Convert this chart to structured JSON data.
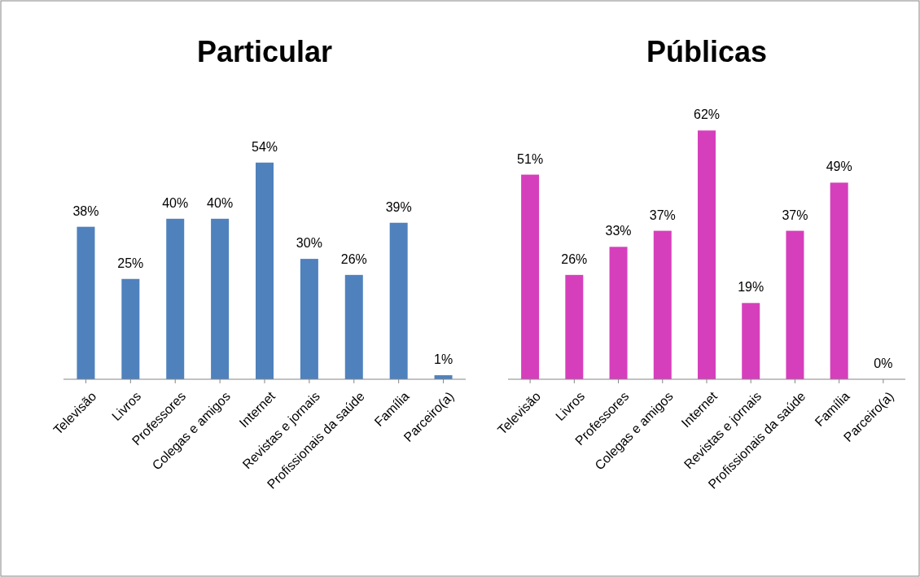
{
  "chart_data": [
    {
      "type": "bar",
      "title": "Particular",
      "categories": [
        "Televisão",
        "Livros",
        "Professores",
        "Colegas e amigos",
        "Internet",
        "Revistas e jornais",
        "Profissionais da saúde",
        "Família",
        "Parceiro(a)"
      ],
      "values": [
        38,
        25,
        40,
        40,
        54,
        30,
        26,
        39,
        1
      ],
      "color": "#4f81bd",
      "value_labels": [
        "38%",
        "25%",
        "40%",
        "40%",
        "54%",
        "30%",
        "26%",
        "39%",
        "1%"
      ]
    },
    {
      "type": "bar",
      "title": "Públicas",
      "categories": [
        "Televisão",
        "Livros",
        "Professores",
        "Colegas e amigos",
        "Internet",
        "Revistas e jornais",
        "Profissionais da saúde",
        "Família",
        "Parceiro(a)"
      ],
      "values": [
        51,
        26,
        33,
        37,
        62,
        19,
        37,
        49,
        0
      ],
      "color": "#d63fbc",
      "value_labels": [
        "51%",
        "26%",
        "33%",
        "37%",
        "62%",
        "19%",
        "37%",
        "49%",
        "0%"
      ]
    }
  ]
}
